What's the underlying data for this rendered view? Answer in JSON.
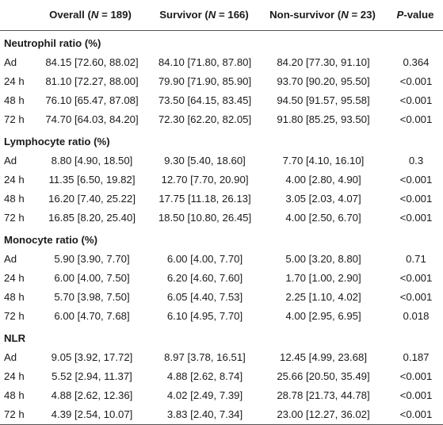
{
  "header": {
    "label": "",
    "overall": {
      "prefix": "Overall (",
      "n": "N",
      "suffix": " = 189)"
    },
    "survivor": {
      "prefix": "Survivor (",
      "n": "N",
      "suffix": " = 166)"
    },
    "nonsurvivor": {
      "prefix": "Non-survivor (",
      "n": "N",
      "suffix": " = 23)"
    },
    "pvalue": {
      "p": "P",
      "suffix": "-value"
    }
  },
  "sections": [
    {
      "title": "Neutrophil ratio (%)",
      "rows": [
        {
          "time": "Ad",
          "overall": "84.15 [72.60, 88.02]",
          "survivor": "84.10 [71.80, 87.80]",
          "nonsurvivor": "84.20 [77.30, 91.10]",
          "p": "0.364"
        },
        {
          "time": "24 h",
          "overall": "81.10 [72.27, 88.00]",
          "survivor": "79.90 [71.90, 85.90]",
          "nonsurvivor": "93.70 [90.20, 95.50]",
          "p": "<0.001"
        },
        {
          "time": "48 h",
          "overall": "76.10 [65.47, 87.08]",
          "survivor": "73.50 [64.15, 83.45]",
          "nonsurvivor": "94.50 [91.57, 95.58]",
          "p": "<0.001"
        },
        {
          "time": "72 h",
          "overall": "74.70 [64.03, 84.20]",
          "survivor": "72.30 [62.20, 82.05]",
          "nonsurvivor": "91.80 [85.25, 93.50]",
          "p": "<0.001"
        }
      ]
    },
    {
      "title": "Lymphocyte ratio (%)",
      "rows": [
        {
          "time": "Ad",
          "overall": "8.80 [4.90, 18.50]",
          "survivor": "9.30 [5.40, 18.60]",
          "nonsurvivor": "7.70 [4.10, 16.10]",
          "p": "0.3"
        },
        {
          "time": "24 h",
          "overall": "11.35 [6.50, 19.82]",
          "survivor": "12.70 [7.70, 20.90]",
          "nonsurvivor": "4.00 [2.80, 4.90]",
          "p": "<0.001"
        },
        {
          "time": "48 h",
          "overall": "16.20 [7.40, 25.22]",
          "survivor": "17.75 [11.18, 26.13]",
          "nonsurvivor": "3.05 [2.03, 4.07]",
          "p": "<0.001"
        },
        {
          "time": "72 h",
          "overall": "16.85 [8.20, 25.40]",
          "survivor": "18.50 [10.80, 26.45]",
          "nonsurvivor": "4.00 [2.50, 6.70]",
          "p": "<0.001"
        }
      ]
    },
    {
      "title": "Monocyte ratio (%)",
      "rows": [
        {
          "time": "Ad",
          "overall": "5.90 [3.90, 7.70]",
          "survivor": "6.00 [4.00, 7.70]",
          "nonsurvivor": "5.00 [3.20, 8.80]",
          "p": "0.71"
        },
        {
          "time": "24 h",
          "overall": "6.00 [4.00, 7.50]",
          "survivor": "6.20 [4.60, 7.60]",
          "nonsurvivor": "1.70 [1.00, 2.90]",
          "p": "<0.001"
        },
        {
          "time": "48 h",
          "overall": "5.70 [3.98, 7.50]",
          "survivor": "6.05 [4.40, 7.53]",
          "nonsurvivor": "2.25 [1.10, 4.02]",
          "p": "<0.001"
        },
        {
          "time": "72 h",
          "overall": "6.00 [4.70, 7.68]",
          "survivor": "6.10 [4.95, 7.70]",
          "nonsurvivor": "4.00 [2.95, 6.95]",
          "p": "0.018"
        }
      ]
    },
    {
      "title": "NLR",
      "rows": [
        {
          "time": "Ad",
          "overall": "9.05 [3.92, 17.72]",
          "survivor": "8.97 [3.78, 16.51]",
          "nonsurvivor": "12.45 [4.99, 23.68]",
          "p": "0.187"
        },
        {
          "time": "24 h",
          "overall": "5.52 [2.94, 11.37]",
          "survivor": "4.88 [2.62, 8.74]",
          "nonsurvivor": "25.66 [20.50, 35.49]",
          "p": "<0.001"
        },
        {
          "time": "48 h",
          "overall": "4.88 [2.62, 12.36]",
          "survivor": "4.02 [2.49, 7.39]",
          "nonsurvivor": "28.78 [21.73, 44.78]",
          "p": "<0.001"
        },
        {
          "time": "72 h",
          "overall": "4.39 [2.54, 10.07]",
          "survivor": "3.83 [2.40, 7.34]",
          "nonsurvivor": "23.00 [12.27, 36.02]",
          "p": "<0.001"
        }
      ]
    }
  ]
}
